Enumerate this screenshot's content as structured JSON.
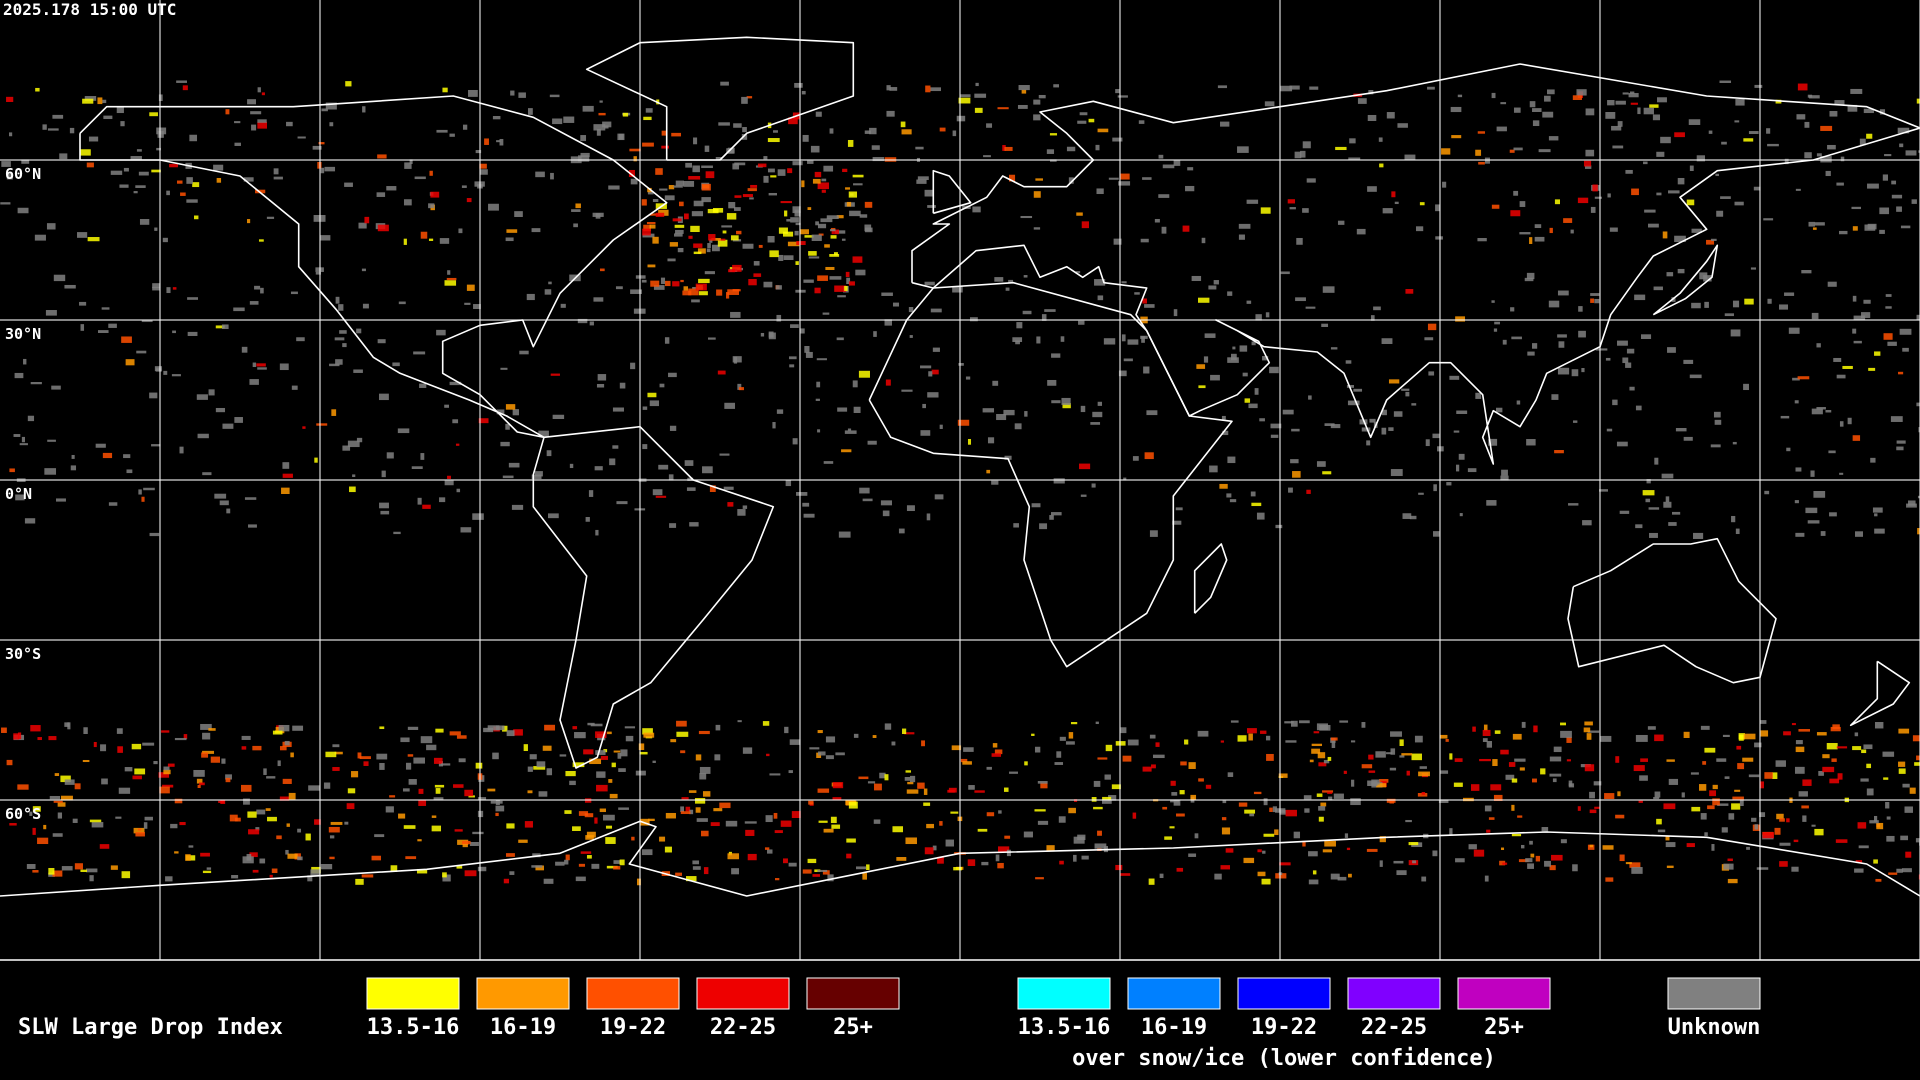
{
  "header": {
    "timestamp": "2025.178 15:00 UTC"
  },
  "grid_labels": [
    "60°N",
    "30°N",
    "0°N",
    "30°S",
    "60°S"
  ],
  "legend": {
    "title": "SLW Large Drop Index",
    "groups": [
      {
        "items": [
          {
            "label": "13.5-16",
            "color": "#ffff00"
          },
          {
            "label": "16-19",
            "color": "#ff9900"
          },
          {
            "label": "19-22",
            "color": "#ff5000"
          },
          {
            "label": "22-25",
            "color": "#ee0000"
          },
          {
            "label": "25+",
            "color": "#660000"
          }
        ]
      },
      {
        "items": [
          {
            "label": "13.5-16",
            "color": "#00ffff"
          },
          {
            "label": "16-19",
            "color": "#0080ff"
          },
          {
            "label": "19-22",
            "color": "#0000ff"
          },
          {
            "label": "22-25",
            "color": "#8000ff"
          },
          {
            "label": "25+",
            "color": "#c000c0"
          }
        ],
        "note": "over snow/ice (lower confidence)"
      },
      {
        "items": [
          {
            "label": "Unknown",
            "color": "#808080"
          }
        ]
      }
    ]
  }
}
